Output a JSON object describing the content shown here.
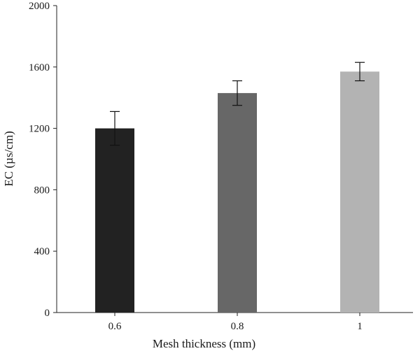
{
  "chart_data": {
    "type": "bar",
    "categories": [
      "0.6",
      "0.8",
      "1"
    ],
    "values": [
      1200,
      1430,
      1570
    ],
    "errors": [
      110,
      80,
      60
    ],
    "colors": [
      "#222222",
      "#676767",
      "#b3b3b3"
    ],
    "xlabel": "Mesh thickness (mm)",
    "ylabel": "EC (µs/cm)",
    "ylim": [
      0,
      2000
    ],
    "yticks": [
      0,
      400,
      800,
      1200,
      1600,
      2000
    ],
    "grid": false,
    "legend": "none"
  }
}
